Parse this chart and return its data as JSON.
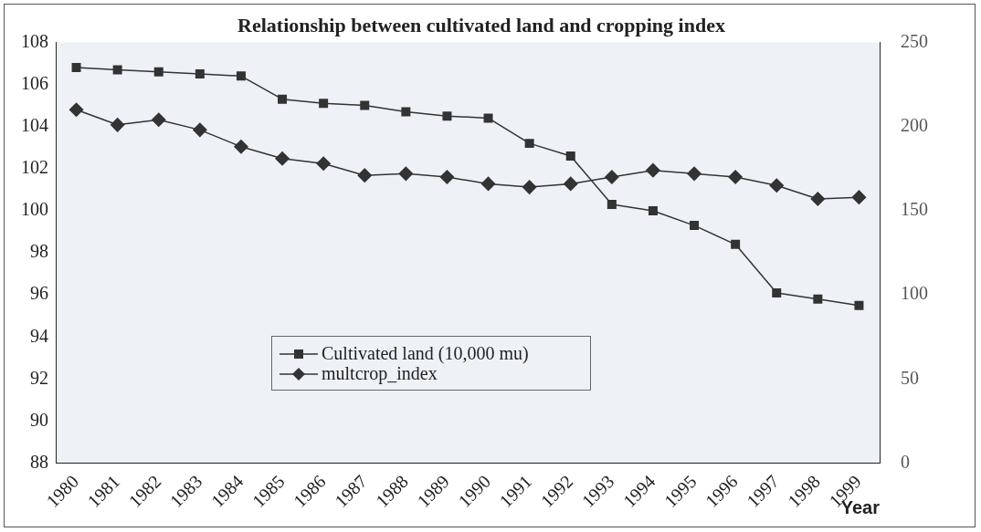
{
  "chart_data": {
    "type": "line",
    "title": "Relationship between cultivated land and cropping index",
    "xlabel": "Year",
    "categories": [
      "1980",
      "1981",
      "1982",
      "1983",
      "1984",
      "1985",
      "1986",
      "1987",
      "1988",
      "1989",
      "1990",
      "1991",
      "1992",
      "1993",
      "1994",
      "1995",
      "1996",
      "1997",
      "1998",
      "1999"
    ],
    "series": [
      {
        "name": "Cultivated land (10,000 mu)",
        "color": "#333333",
        "marker": "square",
        "values": [
          106.8,
          106.7,
          106.6,
          106.5,
          106.4,
          105.3,
          105.1,
          105.0,
          104.7,
          104.5,
          104.4,
          103.2,
          102.6,
          100.3,
          100.0,
          99.3,
          98.4,
          96.1,
          95.8,
          95.5
        ]
      },
      {
        "name": "multcrop_index",
        "color": "#333333",
        "marker": "diamond",
        "axis": "y2",
        "values": [
          210,
          201,
          204,
          198,
          188,
          181,
          178,
          171,
          172,
          170,
          166,
          164,
          166,
          170,
          174,
          172,
          170,
          165,
          157,
          158
        ]
      }
    ],
    "ylim": [
      88,
      108
    ],
    "yticks": [
      88,
      90,
      92,
      94,
      96,
      98,
      100,
      102,
      104,
      106,
      108
    ],
    "y2lim": [
      0,
      250
    ],
    "y2ticks": [
      0,
      50,
      100,
      150,
      200,
      250
    ],
    "legend": "bottom",
    "grid": false,
    "line_style": "solid"
  }
}
